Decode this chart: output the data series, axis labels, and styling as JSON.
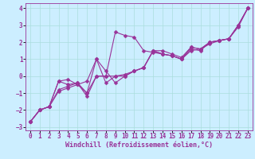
{
  "xlabel": "Windchill (Refroidissement éolien,°C)",
  "bg_color": "#cceeff",
  "line_color": "#993399",
  "xlim": [
    -0.5,
    23.5
  ],
  "ylim": [
    -3.2,
    4.3
  ],
  "xticks": [
    0,
    1,
    2,
    3,
    4,
    5,
    6,
    7,
    8,
    9,
    10,
    11,
    12,
    13,
    14,
    15,
    16,
    17,
    18,
    19,
    20,
    21,
    22,
    23
  ],
  "yticks": [
    -3,
    -2,
    -1,
    0,
    1,
    2,
    3,
    4
  ],
  "series1_x": [
    0,
    1,
    2,
    3,
    4,
    5,
    6,
    7,
    8,
    9,
    10,
    11,
    12,
    13,
    14,
    15,
    16,
    17,
    18,
    19,
    20,
    21,
    22,
    23
  ],
  "series1_y": [
    -2.7,
    -2.0,
    -1.8,
    -0.3,
    -0.2,
    -0.5,
    -1.0,
    1.0,
    0.3,
    -0.4,
    0.0,
    0.3,
    0.5,
    1.5,
    1.3,
    1.2,
    1.0,
    1.6,
    1.5,
    2.0,
    2.1,
    2.2,
    3.0,
    4.0
  ],
  "series2_x": [
    0,
    1,
    2,
    3,
    4,
    5,
    6,
    7,
    8,
    9,
    10,
    11,
    12,
    13,
    14,
    15,
    16,
    17,
    18,
    19,
    20,
    21,
    22,
    23
  ],
  "series2_y": [
    -2.7,
    -2.0,
    -1.8,
    -0.8,
    -0.6,
    -0.4,
    -1.0,
    0.0,
    0.0,
    2.6,
    2.4,
    2.3,
    1.5,
    1.4,
    1.3,
    1.2,
    1.0,
    1.7,
    1.6,
    2.0,
    2.1,
    2.2,
    3.0,
    4.0
  ],
  "series3_x": [
    0,
    1,
    2,
    3,
    4,
    5,
    6,
    7,
    8,
    9,
    10,
    11,
    12,
    13,
    14,
    15,
    16,
    17,
    18,
    19,
    20,
    21,
    22,
    23
  ],
  "series3_y": [
    -2.7,
    -2.0,
    -1.8,
    -0.3,
    -0.5,
    -0.4,
    -1.2,
    0.0,
    0.0,
    0.0,
    0.1,
    0.3,
    0.5,
    1.5,
    1.3,
    1.2,
    1.0,
    1.5,
    1.6,
    1.9,
    2.1,
    2.2,
    2.9,
    4.0
  ],
  "series4_x": [
    0,
    1,
    2,
    3,
    4,
    5,
    6,
    7,
    8,
    9,
    10,
    11,
    12,
    13,
    14,
    15,
    16,
    17,
    18,
    19,
    20,
    21,
    22,
    23
  ],
  "series4_y": [
    -2.7,
    -2.0,
    -1.8,
    -0.9,
    -0.7,
    -0.5,
    -0.3,
    1.0,
    -0.4,
    0.0,
    0.0,
    0.3,
    0.5,
    1.5,
    1.5,
    1.3,
    1.1,
    1.7,
    1.6,
    2.0,
    2.1,
    2.2,
    3.0,
    4.0
  ],
  "grid_color": "#aadddd",
  "tick_fontsize": 5.5,
  "xlabel_fontsize": 6.0
}
